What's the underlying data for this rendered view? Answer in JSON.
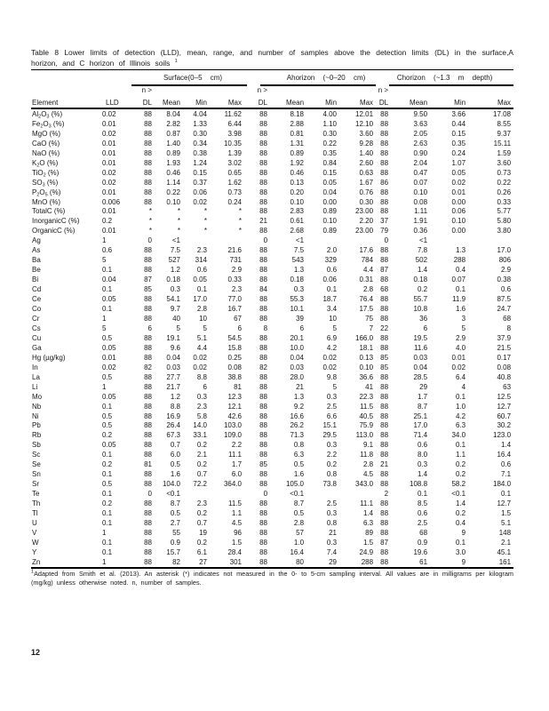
{
  "caption": {
    "line1": "Table 8 Lower limits of detection (LLD), mean, range, and number of samples above the detection limits (DL) in the surface,A",
    "line2": "horizon, and C horizon of Illinois soils",
    "footnote_mark": "1"
  },
  "table": {
    "groups": [
      {
        "label": "Surface(0–5 cm)"
      },
      {
        "label": "Ahorizon (~0–20 cm)"
      },
      {
        "label": "Chorizon (~1.3 m depth)"
      }
    ],
    "columns": {
      "element": "Element",
      "lld": "LLD",
      "n_over": "n >",
      "dl": "DL",
      "mean": "Mean",
      "min": "Min",
      "max": "Max"
    },
    "rows": [
      {
        "element": "Al|2|O|3| (%)",
        "lld": "0.02",
        "surface": [
          "88",
          "8.04",
          "4.04",
          "11.62"
        ],
        "a_horizon": [
          "88",
          "8.18",
          "4.00",
          "12.01"
        ],
        "c_horizon": [
          "88",
          "9.50",
          "3.66",
          "17.08"
        ]
      },
      {
        "element": "Fe|2|O|3| (%)",
        "lld": "0.01",
        "surface": [
          "88",
          "2.82",
          "1.33",
          "6.44"
        ],
        "a_horizon": [
          "88",
          "2.88",
          "1.10",
          "12.10"
        ],
        "c_horizon": [
          "88",
          "3.63",
          "0.44",
          "8.55"
        ]
      },
      {
        "element": "MgO (%)",
        "lld": "0.02",
        "surface": [
          "88",
          "0.87",
          "0.30",
          "3.98"
        ],
        "a_horizon": [
          "88",
          "0.81",
          "0.30",
          "3.60"
        ],
        "c_horizon": [
          "88",
          "2.05",
          "0.15",
          "9.37"
        ]
      },
      {
        "element": "CaO (%)",
        "lld": "0.01",
        "surface": [
          "88",
          "1.40",
          "0.34",
          "10.35"
        ],
        "a_horizon": [
          "88",
          "1.31",
          "0.22",
          "9.28"
        ],
        "c_horizon": [
          "88",
          "2.63",
          "0.35",
          "15.11"
        ]
      },
      {
        "element": "NaO (%)",
        "lld": "0.01",
        "surface": [
          "88",
          "0.89",
          "0.38",
          "1.39"
        ],
        "a_horizon": [
          "88",
          "0.89",
          "0.35",
          "1.40"
        ],
        "c_horizon": [
          "88",
          "0.90",
          "0.24",
          "1.59"
        ]
      },
      {
        "element": "K|2|O (%)",
        "lld": "0.01",
        "surface": [
          "88",
          "1.93",
          "1.24",
          "3.02"
        ],
        "a_horizon": [
          "88",
          "1.92",
          "0.84",
          "2.60"
        ],
        "c_horizon": [
          "88",
          "2.04",
          "1.07",
          "3.60"
        ]
      },
      {
        "element": "TiO|2| (%)",
        "lld": "0.02",
        "surface": [
          "88",
          "0.46",
          "0.15",
          "0.65"
        ],
        "a_horizon": [
          "88",
          "0.46",
          "0.15",
          "0.63"
        ],
        "c_horizon": [
          "88",
          "0.47",
          "0.05",
          "0.73"
        ]
      },
      {
        "element": "SO|3| (%)",
        "lld": "0.02",
        "surface": [
          "88",
          "1.14",
          "0.37",
          "1.62"
        ],
        "a_horizon": [
          "88",
          "0.13",
          "0.05",
          "1.67"
        ],
        "c_horizon": [
          "86",
          "0.07",
          "0.02",
          "0.22"
        ]
      },
      {
        "element": "P|2|O|5| (%)",
        "lld": "0.01",
        "surface": [
          "88",
          "0.22",
          "0.06",
          "0.73"
        ],
        "a_horizon": [
          "88",
          "0.20",
          "0.04",
          "0.76"
        ],
        "c_horizon": [
          "88",
          "0.10",
          "0.01",
          "0.26"
        ]
      },
      {
        "element": "MnO (%)",
        "lld": "0.006",
        "surface": [
          "88",
          "0.10",
          "0.02",
          "0.24"
        ],
        "a_horizon": [
          "88",
          "0.10",
          "0.00",
          "0.30"
        ],
        "c_horizon": [
          "88",
          "0.08",
          "0.00",
          "0.33"
        ]
      },
      {
        "element": "TotalC (%)",
        "lld": "0.01",
        "surface": [
          "*",
          "*",
          "*",
          "*"
        ],
        "a_horizon": [
          "88",
          "2.83",
          "0.89",
          "23.00"
        ],
        "c_horizon": [
          "88",
          "1.11",
          "0.06",
          "5.77"
        ]
      },
      {
        "element": "InorganicC (%)",
        "lld": "0.2",
        "surface": [
          "*",
          "*",
          "*",
          "*"
        ],
        "a_horizon": [
          "21",
          "0.61",
          "0.10",
          "2.20"
        ],
        "c_horizon": [
          "37",
          "1.91",
          "0.10",
          "5.80"
        ]
      },
      {
        "element": "OrganicC (%)",
        "lld": "0.01",
        "surface": [
          "*",
          "*",
          "*",
          "*"
        ],
        "a_horizon": [
          "88",
          "2.68",
          "0.89",
          "23.00"
        ],
        "c_horizon": [
          "79",
          "0.36",
          "0.00",
          "3.80"
        ]
      },
      {
        "element": "Ag",
        "lld": "1",
        "surface": [
          "0",
          "<1",
          "",
          ""
        ],
        "a_horizon": [
          "0",
          "<1",
          "",
          ""
        ],
        "c_horizon": [
          "0",
          "<1",
          "",
          ""
        ]
      },
      {
        "element": "As",
        "lld": "0.6",
        "surface": [
          "88",
          "7.5",
          "2.3",
          "21.6"
        ],
        "a_horizon": [
          "88",
          "7.5",
          "2.0",
          "17.6"
        ],
        "c_horizon": [
          "88",
          "7.8",
          "1.3",
          "17.0"
        ]
      },
      {
        "element": "Ba",
        "lld": "5",
        "surface": [
          "88",
          "527",
          "314",
          "731"
        ],
        "a_horizon": [
          "88",
          "543",
          "329",
          "784"
        ],
        "c_horizon": [
          "88",
          "502",
          "288",
          "806"
        ]
      },
      {
        "element": "Be",
        "lld": "0.1",
        "surface": [
          "88",
          "1.2",
          "0.6",
          "2.9"
        ],
        "a_horizon": [
          "88",
          "1.3",
          "0.6",
          "4.4"
        ],
        "c_horizon": [
          "87",
          "1.4",
          "0.4",
          "2.9"
        ]
      },
      {
        "element": "Bi",
        "lld": "0.04",
        "surface": [
          "87",
          "0.18",
          "0.05",
          "0.33"
        ],
        "a_horizon": [
          "88",
          "0.18",
          "0.06",
          "0.31"
        ],
        "c_horizon": [
          "88",
          "0.18",
          "0.07",
          "0.38"
        ]
      },
      {
        "element": "Cd",
        "lld": "0.1",
        "surface": [
          "85",
          "0.3",
          "0.1",
          "2.3"
        ],
        "a_horizon": [
          "84",
          "0.3",
          "0.1",
          "2.8"
        ],
        "c_horizon": [
          "68",
          "0.2",
          "0.1",
          "0.6"
        ]
      },
      {
        "element": "Ce",
        "lld": "0.05",
        "surface": [
          "88",
          "54.1",
          "17.0",
          "77.0"
        ],
        "a_horizon": [
          "88",
          "55.3",
          "18.7",
          "76.4"
        ],
        "c_horizon": [
          "88",
          "55.7",
          "11.9",
          "87.5"
        ]
      },
      {
        "element": "Co",
        "lld": "0.1",
        "surface": [
          "88",
          "9.7",
          "2.8",
          "16.7"
        ],
        "a_horizon": [
          "88",
          "10.1",
          "3.4",
          "17.5"
        ],
        "c_horizon": [
          "88",
          "10.8",
          "1.6",
          "24.7"
        ]
      },
      {
        "element": "Cr",
        "lld": "1",
        "surface": [
          "88",
          "40",
          "10",
          "67"
        ],
        "a_horizon": [
          "88",
          "39",
          "10",
          "75"
        ],
        "c_horizon": [
          "88",
          "36",
          "3",
          "68"
        ]
      },
      {
        "element": "Cs",
        "lld": "5",
        "surface": [
          "6",
          "5",
          "5",
          "6"
        ],
        "a_horizon": [
          "8",
          "6",
          "5",
          "7"
        ],
        "c_horizon": [
          "22",
          "6",
          "5",
          "8"
        ]
      },
      {
        "element": "Cu",
        "lld": "0.5",
        "surface": [
          "88",
          "19.1",
          "5.1",
          "54.5"
        ],
        "a_horizon": [
          "88",
          "20.1",
          "6.9",
          "166.0"
        ],
        "c_horizon": [
          "88",
          "19.5",
          "2.9",
          "37.9"
        ]
      },
      {
        "element": "Ga",
        "lld": "0.05",
        "surface": [
          "88",
          "9.6",
          "4.4",
          "15.8"
        ],
        "a_horizon": [
          "88",
          "10.0",
          "4.2",
          "18.1"
        ],
        "c_horizon": [
          "88",
          "11.6",
          "4.0",
          "21.5"
        ]
      },
      {
        "element": "Hg (µg/kg)",
        "lld": "0.01",
        "surface": [
          "88",
          "0.04",
          "0.02",
          "0.25"
        ],
        "a_horizon": [
          "88",
          "0.04",
          "0.02",
          "0.13"
        ],
        "c_horizon": [
          "85",
          "0.03",
          "0.01",
          "0.17"
        ]
      },
      {
        "element": "In",
        "lld": "0.02",
        "surface": [
          "82",
          "0.03",
          "0.02",
          "0.08"
        ],
        "a_horizon": [
          "82",
          "0.03",
          "0.02",
          "0.10"
        ],
        "c_horizon": [
          "85",
          "0.04",
          "0.02",
          "0.08"
        ]
      },
      {
        "element": "La",
        "lld": "0.5",
        "surface": [
          "88",
          "27.7",
          "8.8",
          "38.8"
        ],
        "a_horizon": [
          "88",
          "28.0",
          "9.8",
          "36.6"
        ],
        "c_horizon": [
          "88",
          "28.5",
          "6.4",
          "40.8"
        ]
      },
      {
        "element": "Li",
        "lld": "1",
        "surface": [
          "88",
          "21.7",
          "6",
          "81"
        ],
        "a_horizon": [
          "88",
          "21",
          "5",
          "41"
        ],
        "c_horizon": [
          "88",
          "29",
          "4",
          "63"
        ]
      },
      {
        "element": "Mo",
        "lld": "0.05",
        "surface": [
          "88",
          "1.2",
          "0.3",
          "12.3"
        ],
        "a_horizon": [
          "88",
          "1.3",
          "0.3",
          "22.3"
        ],
        "c_horizon": [
          "88",
          "1.7",
          "0.1",
          "12.5"
        ]
      },
      {
        "element": "Nb",
        "lld": "0.1",
        "surface": [
          "88",
          "8.8",
          "2.3",
          "12.1"
        ],
        "a_horizon": [
          "88",
          "9.2",
          "2.5",
          "11.5"
        ],
        "c_horizon": [
          "88",
          "8.7",
          "1.0",
          "12.7"
        ]
      },
      {
        "element": "Ni",
        "lld": "0.5",
        "surface": [
          "88",
          "16.9",
          "5.8",
          "42.6"
        ],
        "a_horizon": [
          "88",
          "16.6",
          "6.6",
          "40.5"
        ],
        "c_horizon": [
          "88",
          "25.1",
          "4.2",
          "60.7"
        ]
      },
      {
        "element": "Pb",
        "lld": "0.5",
        "surface": [
          "88",
          "26.4",
          "14.0",
          "103.0"
        ],
        "a_horizon": [
          "88",
          "26.2",
          "15.1",
          "75.9"
        ],
        "c_horizon": [
          "88",
          "17.0",
          "6.3",
          "30.2"
        ]
      },
      {
        "element": "Rb",
        "lld": "0.2",
        "surface": [
          "88",
          "67.3",
          "33.1",
          "109.0"
        ],
        "a_horizon": [
          "88",
          "71.3",
          "29.5",
          "113.0"
        ],
        "c_horizon": [
          "88",
          "71.4",
          "34.0",
          "123.0"
        ]
      },
      {
        "element": "Sb",
        "lld": "0.05",
        "surface": [
          "88",
          "0.7",
          "0.2",
          "2.2"
        ],
        "a_horizon": [
          "88",
          "0.8",
          "0.3",
          "9.1"
        ],
        "c_horizon": [
          "88",
          "0.6",
          "0.1",
          "1.4"
        ]
      },
      {
        "element": "Sc",
        "lld": "0.1",
        "surface": [
          "88",
          "6.0",
          "2.1",
          "11.1"
        ],
        "a_horizon": [
          "88",
          "6.3",
          "2.2",
          "11.8"
        ],
        "c_horizon": [
          "88",
          "8.0",
          "1.1",
          "16.4"
        ]
      },
      {
        "element": "Se",
        "lld": "0.2",
        "surface": [
          "81",
          "0.5",
          "0.2",
          "1.7"
        ],
        "a_horizon": [
          "85",
          "0.5",
          "0.2",
          "2.8"
        ],
        "c_horizon": [
          "21",
          "0.3",
          "0.2",
          "0.6"
        ]
      },
      {
        "element": "Sn",
        "lld": "0.1",
        "surface": [
          "88",
          "1.6",
          "0.7",
          "6.0"
        ],
        "a_horizon": [
          "88",
          "1.6",
          "0.8",
          "4.5"
        ],
        "c_horizon": [
          "88",
          "1.4",
          "0.2",
          "7.1"
        ]
      },
      {
        "element": "Sr",
        "lld": "0.5",
        "surface": [
          "88",
          "104.0",
          "72.2",
          "364.0"
        ],
        "a_horizon": [
          "88",
          "105.0",
          "73.8",
          "343.0"
        ],
        "c_horizon": [
          "88",
          "108.8",
          "58.2",
          "184.0"
        ]
      },
      {
        "element": "Te",
        "lld": "0.1",
        "surface": [
          "0",
          "<0.1",
          "",
          ""
        ],
        "a_horizon": [
          "0",
          "<0.1",
          "",
          ""
        ],
        "c_horizon": [
          "2",
          "0.1",
          "<0.1",
          "0.1"
        ]
      },
      {
        "element": "Th",
        "lld": "0.2",
        "surface": [
          "88",
          "8.7",
          "2.3",
          "11.5"
        ],
        "a_horizon": [
          "88",
          "8.7",
          "2.5",
          "11.1"
        ],
        "c_horizon": [
          "88",
          "8.5",
          "1.4",
          "12.7"
        ]
      },
      {
        "element": "Tl",
        "lld": "0.1",
        "surface": [
          "88",
          "0.5",
          "0.2",
          "1.1"
        ],
        "a_horizon": [
          "88",
          "0.5",
          "0.3",
          "1.4"
        ],
        "c_horizon": [
          "88",
          "0.6",
          "0.2",
          "1.5"
        ]
      },
      {
        "element": "U",
        "lld": "0.1",
        "surface": [
          "88",
          "2.7",
          "0.7",
          "4.5"
        ],
        "a_horizon": [
          "88",
          "2.8",
          "0.8",
          "6.3"
        ],
        "c_horizon": [
          "88",
          "2.5",
          "0.4",
          "5.1"
        ]
      },
      {
        "element": "V",
        "lld": "1",
        "surface": [
          "88",
          "55",
          "19",
          "96"
        ],
        "a_horizon": [
          "88",
          "57",
          "21",
          "89"
        ],
        "c_horizon": [
          "88",
          "68",
          "9",
          "148"
        ]
      },
      {
        "element": "W",
        "lld": "0.1",
        "surface": [
          "88",
          "0.9",
          "0.2",
          "1.5"
        ],
        "a_horizon": [
          "88",
          "1.0",
          "0.3",
          "1.5"
        ],
        "c_horizon": [
          "87",
          "0.9",
          "0.1",
          "2.1"
        ]
      },
      {
        "element": "Y",
        "lld": "0.1",
        "surface": [
          "88",
          "15.7",
          "6.1",
          "28.4"
        ],
        "a_horizon": [
          "88",
          "16.4",
          "7.4",
          "24.9"
        ],
        "c_horizon": [
          "88",
          "19.6",
          "3.0",
          "45.1"
        ]
      },
      {
        "element": "Zn",
        "lld": "1",
        "surface": [
          "88",
          "82",
          "27",
          "301"
        ],
        "a_horizon": [
          "88",
          "80",
          "29",
          "288"
        ],
        "c_horizon": [
          "88",
          "61",
          "9",
          "161"
        ]
      }
    ]
  },
  "footnote": {
    "mark": "1",
    "line1": "Adapted from Smith et al. (2013). An asterisk (*) indicates not measured in the 0- to 5-cm sampling interval. All values are in milligrams per kilogram",
    "line2": "(mg/kg) unless otherwise noted. n, number of samples."
  },
  "page_number": "12"
}
